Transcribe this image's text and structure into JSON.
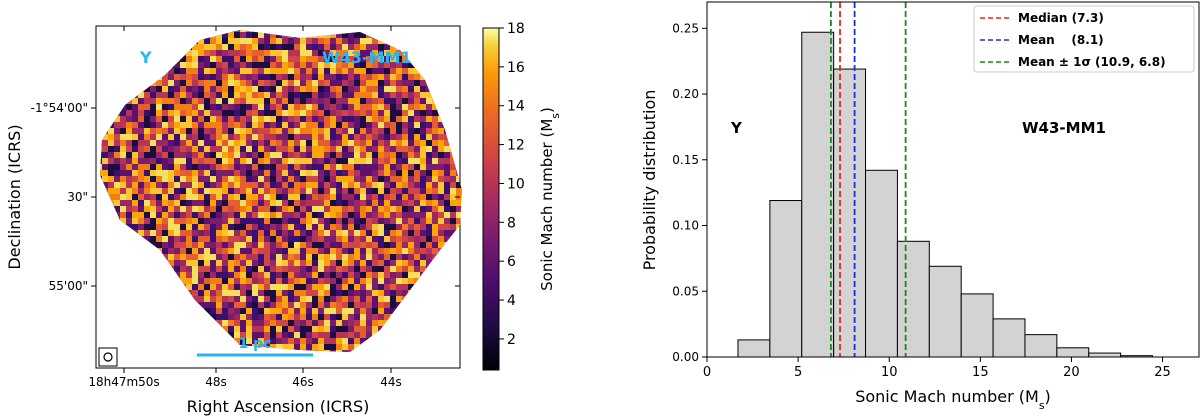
{
  "colors": {
    "cyan_annotation": "#29b6f0",
    "bar_fill": "#d3d3d3",
    "bar_edge": "#000000",
    "median": "#e8261e",
    "mean": "#1f2be0",
    "sigma": "#1a8a1a"
  },
  "chart_data": [
    {
      "type": "heatmap",
      "title": "",
      "xlabel": "Right Ascension (ICRS)",
      "ylabel": "Declination (ICRS)",
      "x_ticks": [
        "18h47m50s",
        "48s",
        "46s",
        "44s"
      ],
      "y_ticks": [
        "-1°54'00\"",
        "30\"",
        "55'00\""
      ],
      "colorbar": {
        "label": "Sonic Mach number (Ms)",
        "label_main": "Sonic Mach number (M",
        "label_sub": "s",
        "label_end": ")",
        "colormap": "inferno",
        "range": [
          0.4,
          18
        ],
        "ticks": [
          "2",
          "4",
          "6",
          "8",
          "10",
          "12",
          "14",
          "16",
          "18"
        ]
      },
      "annotations": {
        "region": "Y",
        "source": "W43-MM1",
        "scalebar": "1 pc"
      }
    },
    {
      "type": "bar",
      "title": "",
      "xlabel": "Sonic Mach number (Ms)",
      "xlabel_main": "Sonic Mach number (M",
      "xlabel_sub": "s",
      "xlabel_end": ")",
      "ylabel": "Probability distribution",
      "xlim": [
        0,
        27
      ],
      "ylim": [
        0,
        0.27
      ],
      "x_ticks": [
        0,
        5,
        10,
        15,
        20,
        25
      ],
      "y_ticks": [
        "0.00",
        "0.05",
        "0.10",
        "0.15",
        "0.20",
        "0.25"
      ],
      "bin_edges": [
        1.7,
        3.45,
        5.2,
        6.95,
        8.7,
        10.45,
        12.2,
        13.95,
        15.7,
        17.45,
        19.2,
        20.95,
        22.7,
        24.45
      ],
      "values": [
        0.013,
        0.119,
        0.247,
        0.219,
        0.142,
        0.088,
        0.069,
        0.048,
        0.029,
        0.017,
        0.007,
        0.003,
        0.001
      ],
      "vlines": [
        {
          "name": "Median",
          "x": 7.3,
          "color": "#e8261e",
          "label": "Median (7.3)"
        },
        {
          "name": "Mean",
          "x": 8.1,
          "color": "#1f2be0",
          "label": "Mean    (8.1)"
        },
        {
          "name": "Mean - 1 sigma",
          "x": 6.8,
          "color": "#1a8a1a",
          "label": "Mean ± 1σ (10.9, 6.8)"
        },
        {
          "name": "Mean + 1 sigma",
          "x": 10.9,
          "color": "#1a8a1a",
          "label": ""
        }
      ],
      "annotations": {
        "region": "Y",
        "source": "W43-MM1"
      }
    }
  ]
}
